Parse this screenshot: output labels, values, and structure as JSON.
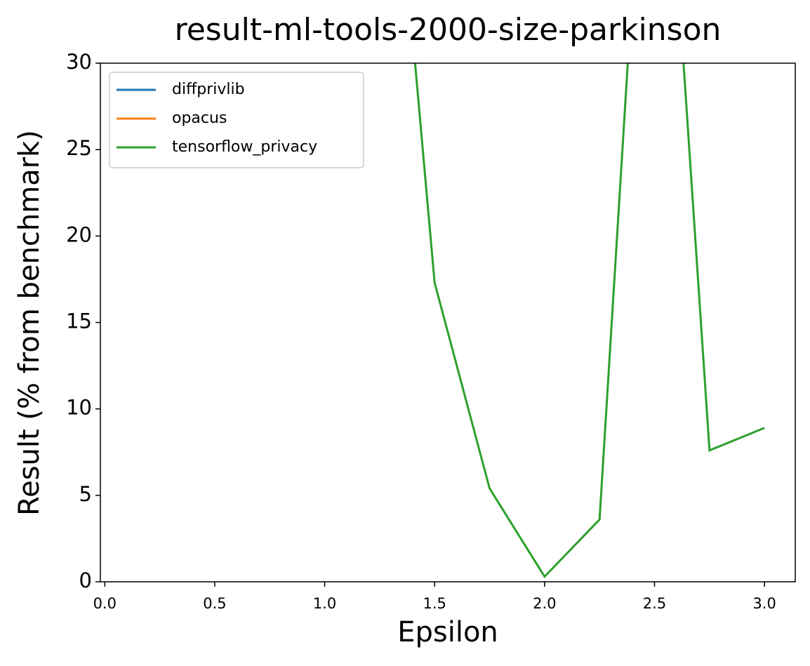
{
  "chart_data": {
    "type": "line",
    "title": "result-ml-tools-2000-size-parkinson",
    "xlabel": "Epsilon",
    "ylabel": "Result (% from benchmark)",
    "x": [
      0,
      0.25,
      0.5,
      0.75,
      1.0,
      1.25,
      1.5,
      1.75,
      2.0,
      2.25,
      2.5,
      2.75,
      3.0
    ],
    "series": [
      {
        "name": "diffprivlib",
        "color": "#1f77b4",
        "values": [
          null,
          null,
          null,
          null,
          null,
          null,
          null,
          null,
          null,
          null,
          null,
          null,
          null
        ]
      },
      {
        "name": "opacus",
        "color": "#ff7f0e",
        "values": [
          null,
          null,
          null,
          null,
          null,
          null,
          null,
          null,
          null,
          null,
          null,
          null,
          null
        ]
      },
      {
        "name": "tensorflow_privacy",
        "color": "#2ca02c",
        "values": [
          null,
          null,
          null,
          null,
          null,
          53,
          17.3,
          5.4,
          0.3,
          3.6,
          55,
          7.6,
          8.9
        ]
      }
    ],
    "xlim": [
      -0.02,
      3.14
    ],
    "xticks": [
      {
        "value": 0,
        "label": "0.0"
      },
      0.5,
      {
        "value": 1,
        "label": "1.0"
      },
      1.5,
      {
        "value": 2,
        "label": "2.0"
      },
      2.5,
      {
        "value": 3,
        "label": "3.0"
      }
    ],
    "ylim": [
      0,
      30
    ],
    "yticks": [
      0,
      5,
      10,
      15,
      20,
      25,
      30
    ],
    "legend": "upper left"
  }
}
